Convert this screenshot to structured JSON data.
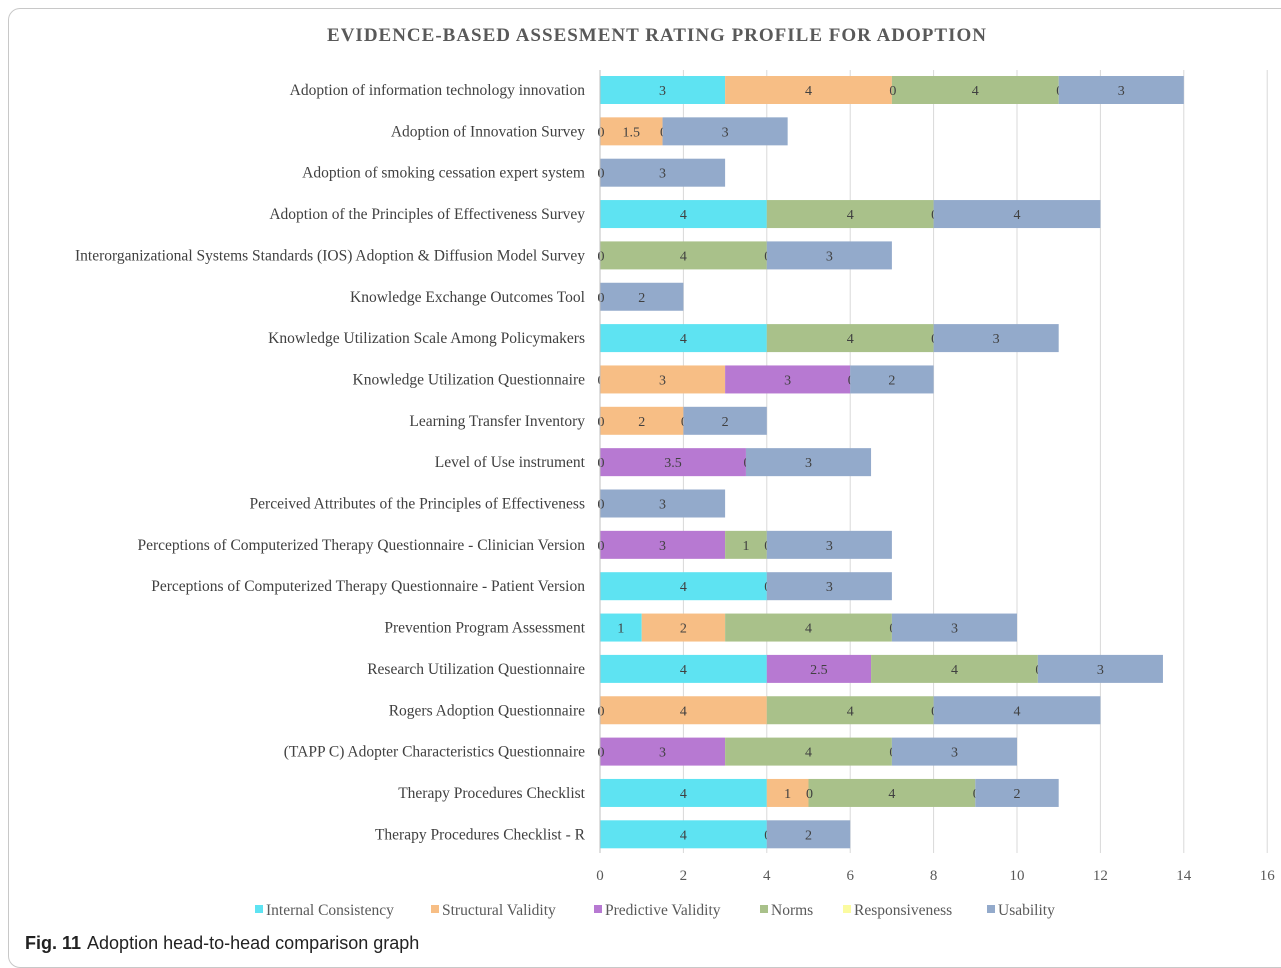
{
  "chart_data": {
    "type": "bar",
    "orientation": "horizontal",
    "stacked": true,
    "title": "EVIDENCE-BASED ASSESMENT RATING PROFILE FOR ADOPTION",
    "xlim": [
      0,
      16
    ],
    "xticks": [
      0,
      2,
      4,
      6,
      8,
      10,
      12,
      14,
      16
    ],
    "grid": true,
    "legend_position": "bottom",
    "categories": [
      "Adoption of information technology innovation",
      "Adoption of Innovation Survey",
      "Adoption of smoking cessation expert system",
      "Adoption of the Principles of Effectiveness Survey",
      "Interorganizational Systems Standards (IOS) Adoption & Diffusion Model Survey",
      "Knowledge Exchange Outcomes Tool",
      "Knowledge Utilization Scale Among Policymakers",
      "Knowledge Utilization Questionnaire",
      "Learning Transfer Inventory",
      "Level of Use instrument",
      "Perceived Attributes of the Principles of Effectiveness",
      "Perceptions of Computerized Therapy Questionnaire - Clinician Version",
      "Perceptions of Computerized Therapy Questionnaire - Patient Version",
      "Prevention Program Assessment",
      "Research Utilization Questionnaire",
      "Rogers Adoption Questionnaire",
      "(TAPP C) Adopter Characteristics Questionnaire",
      "Therapy Procedures Checklist",
      "Therapy Procedures Checklist - R"
    ],
    "series": [
      {
        "name": "Internal Consistency",
        "color": "#5ee3f2",
        "values": [
          3,
          0,
          0,
          4,
          0,
          0,
          4,
          0,
          0,
          0,
          0,
          0,
          4,
          1,
          4,
          0,
          0,
          4,
          4
        ],
        "labels": [
          "3",
          "0",
          "0",
          "4",
          "0",
          "0",
          "4",
          "0",
          "0",
          "0",
          "0",
          "0",
          "4",
          "1",
          "4",
          "0",
          "0",
          "4",
          "4"
        ]
      },
      {
        "name": "Structural Validity",
        "color": "#f7be85",
        "values": [
          4,
          1.5,
          null,
          null,
          null,
          null,
          null,
          3,
          2,
          null,
          null,
          null,
          null,
          2,
          null,
          4,
          null,
          1,
          null
        ],
        "labels": [
          "4",
          "1.5",
          "",
          "",
          "",
          "",
          "",
          "3",
          "2",
          "",
          "",
          "",
          "",
          "2",
          "",
          "4",
          "",
          "1",
          ""
        ]
      },
      {
        "name": "Predictive Validity",
        "color": "#b779d2",
        "values": [
          null,
          null,
          null,
          null,
          null,
          null,
          null,
          3,
          null,
          3.5,
          null,
          3,
          null,
          null,
          2.5,
          null,
          3,
          null,
          null
        ],
        "labels": [
          "",
          "",
          "",
          "",
          "",
          "",
          "",
          "3",
          "",
          "3.5",
          "",
          "3",
          "",
          "",
          "2.5",
          "",
          "3",
          "",
          ""
        ]
      },
      {
        "name": "Norms",
        "color": "#a9c18a",
        "values": [
          4,
          null,
          null,
          4,
          4,
          null,
          4,
          null,
          null,
          null,
          null,
          1,
          null,
          4,
          4,
          4,
          4,
          4,
          null
        ],
        "labels": [
          "4",
          "",
          "",
          "4",
          "4",
          "",
          "4",
          "",
          "",
          "",
          "",
          "1",
          "",
          "4",
          "4",
          "4",
          "4",
          "4",
          ""
        ]
      },
      {
        "name": "Responsiveness",
        "color": "#fbfba0",
        "values": [
          0,
          0,
          null,
          0,
          0,
          null,
          0,
          0,
          0,
          0,
          null,
          0,
          0,
          0,
          0,
          0,
          0,
          0,
          0
        ],
        "labels": [
          "0",
          "0",
          "",
          "0",
          "0",
          "",
          "0",
          "0",
          "0",
          "0",
          "",
          "0",
          "0",
          "0",
          "0",
          "0",
          "0",
          "0",
          "0"
        ]
      },
      {
        "name": "Usability",
        "color": "#93aacb",
        "values": [
          3,
          3,
          3,
          4,
          3,
          2,
          3,
          2,
          2,
          3,
          3,
          3,
          3,
          3,
          3,
          4,
          3,
          2,
          2
        ],
        "labels": [
          "3",
          "3",
          "3",
          "4",
          "3",
          "2",
          "3",
          "2",
          "2",
          "3",
          "3",
          "3",
          "3",
          "3",
          "3",
          "4",
          "3",
          "2",
          "2"
        ]
      }
    ],
    "extra_zero_labels": [
      {
        "row": 0,
        "value": 0,
        "at": 7
      },
      {
        "row": 1,
        "value": 0,
        "at": 0
      },
      {
        "row": 2,
        "value": 0,
        "at": 0
      },
      {
        "row": 4,
        "value": 0,
        "at": 0
      },
      {
        "row": 5,
        "value": 0,
        "at": 0
      },
      {
        "row": 8,
        "value": 0,
        "at": 0
      },
      {
        "row": 9,
        "value": 0,
        "at": 0
      },
      {
        "row": 10,
        "value": 0,
        "at": 0
      },
      {
        "row": 11,
        "value": 0,
        "at": 0
      },
      {
        "row": 15,
        "value": 0,
        "at": 0
      },
      {
        "row": 16,
        "value": 0,
        "at": 0
      },
      {
        "row": 17,
        "value": 0,
        "at": 5
      }
    ]
  },
  "caption": {
    "fig_label": "Fig. 11",
    "text": "Adoption head-to-head comparison graph"
  }
}
